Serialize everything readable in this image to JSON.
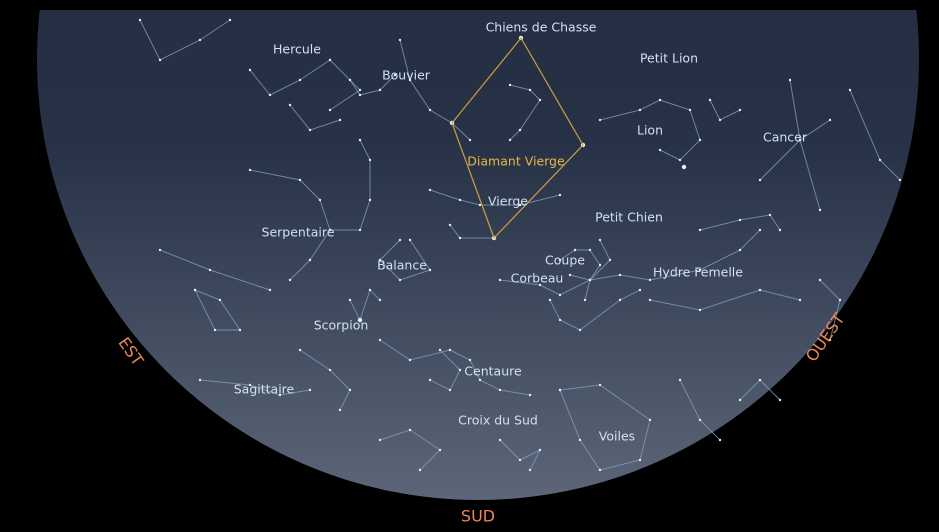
{
  "constellations": [
    {
      "label": "Chiens de Chasse"
    },
    {
      "label": "Hercule"
    },
    {
      "label": "Bouvier"
    },
    {
      "label": "Petit Lion"
    },
    {
      "label": "Lion"
    },
    {
      "label": "Cancer"
    },
    {
      "label": "Vierge"
    },
    {
      "label": "Petit Chien"
    },
    {
      "label": "Serpentaire"
    },
    {
      "label": "Balance"
    },
    {
      "label": "Coupe"
    },
    {
      "label": "Corbeau"
    },
    {
      "label": "Hydre Femelle"
    },
    {
      "label": "Scorpion"
    },
    {
      "label": "Centaure"
    },
    {
      "label": "Sagittaire"
    },
    {
      "label": "Croix du Sud"
    },
    {
      "label": "Voiles"
    }
  ],
  "asterism": {
    "label": "Diamant Vierge"
  },
  "directions": {
    "east": "EST",
    "west": "OUEST",
    "south": "SUD"
  }
}
